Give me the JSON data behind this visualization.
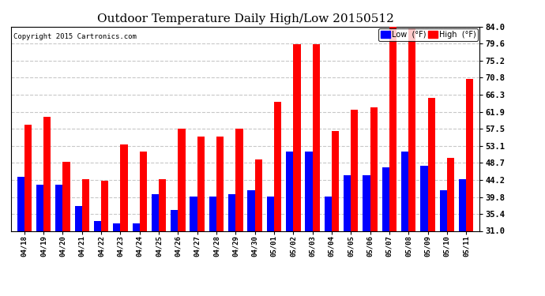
{
  "title": "Outdoor Temperature Daily High/Low 20150512",
  "copyright": "Copyright 2015 Cartronics.com",
  "categories": [
    "04/18",
    "04/19",
    "04/20",
    "04/21",
    "04/22",
    "04/23",
    "04/24",
    "04/25",
    "04/26",
    "04/27",
    "04/28",
    "04/29",
    "04/30",
    "05/01",
    "05/02",
    "05/03",
    "05/04",
    "05/05",
    "05/06",
    "05/07",
    "05/08",
    "05/09",
    "05/10",
    "05/11"
  ],
  "low_values": [
    45.0,
    43.0,
    43.0,
    37.5,
    33.5,
    33.0,
    33.0,
    40.5,
    36.5,
    40.0,
    40.0,
    40.5,
    41.5,
    40.0,
    51.5,
    51.5,
    40.0,
    45.5,
    45.5,
    47.5,
    51.5,
    48.0,
    41.5,
    44.5
  ],
  "high_values": [
    58.5,
    60.5,
    49.0,
    44.5,
    44.0,
    53.5,
    51.5,
    44.5,
    57.5,
    55.5,
    55.5,
    57.5,
    49.5,
    64.5,
    79.5,
    79.5,
    57.0,
    62.5,
    63.0,
    84.0,
    83.5,
    65.5,
    50.0,
    70.5
  ],
  "low_color": "#0000ff",
  "high_color": "#ff0000",
  "bg_color": "#ffffff",
  "grid_color": "#c8c8c8",
  "ylim": [
    31.0,
    84.0
  ],
  "yticks": [
    31.0,
    35.4,
    39.8,
    44.2,
    48.7,
    53.1,
    57.5,
    61.9,
    66.3,
    70.8,
    75.2,
    79.6,
    84.0
  ],
  "title_fontsize": 11,
  "bar_width": 0.38,
  "legend_low": "Low  (°F)",
  "legend_high": "High  (°F)"
}
